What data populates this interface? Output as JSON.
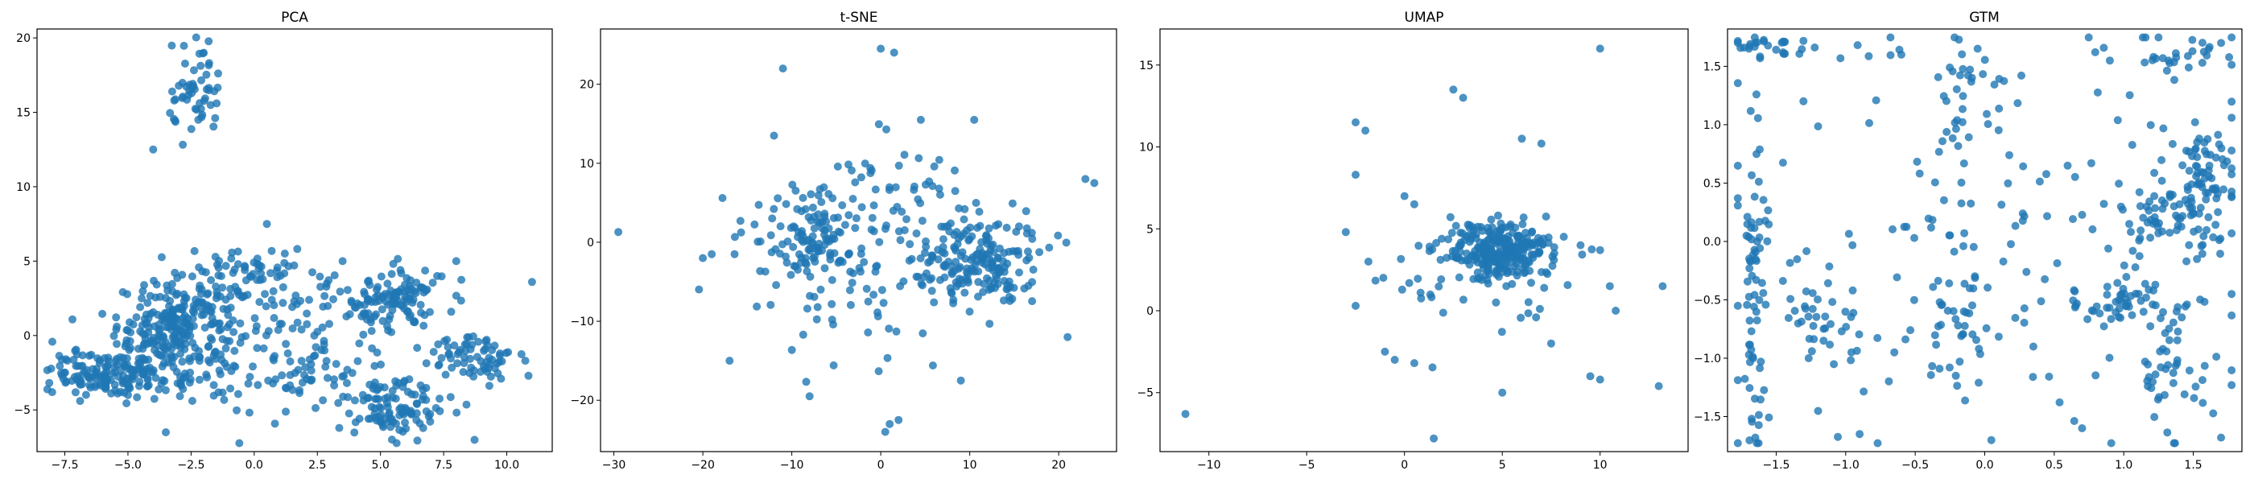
{
  "figure": {
    "background": "#ffffff"
  },
  "chart_data": [
    {
      "type": "scatter",
      "title": "PCA",
      "xlabel": "",
      "ylabel": "",
      "xlim": [
        -8.6,
        11.8
      ],
      "ylim": [
        -7.8,
        20.6
      ],
      "xticks": [
        -7.5,
        -5.0,
        -2.5,
        0.0,
        2.5,
        5.0,
        7.5,
        10.0
      ],
      "xtick_labels": [
        "−7.5",
        "−5.0",
        "−2.5",
        "0.0",
        "2.5",
        "5.0",
        "7.5",
        "10.0"
      ],
      "yticks": [
        -5,
        0,
        5,
        10,
        15,
        20
      ],
      "ytick_labels": [
        "−5",
        "0",
        "5",
        "10",
        "15",
        "20"
      ],
      "color": "#1f77b4",
      "grid": false,
      "clusters": [
        {
          "center": [
            -3.0,
            0.5
          ],
          "spread": [
            1.2,
            1.6
          ],
          "count": 260
        },
        {
          "center": [
            -5.5,
            -2.6
          ],
          "spread": [
            1.3,
            0.8
          ],
          "count": 170
        },
        {
          "center": [
            5.5,
            2.5
          ],
          "spread": [
            1.0,
            1.1
          ],
          "count": 110
        },
        {
          "center": [
            5.5,
            -4.5
          ],
          "spread": [
            1.1,
            1.2
          ],
          "count": 110
        },
        {
          "center": [
            8.8,
            -1.5
          ],
          "spread": [
            1.1,
            0.9
          ],
          "count": 70
        },
        {
          "center": [
            -2.3,
            16.0
          ],
          "spread": [
            0.55,
            1.6
          ],
          "count": 55
        },
        {
          "center": [
            -0.5,
            4.0
          ],
          "spread": [
            1.1,
            1.0
          ],
          "count": 60
        },
        {
          "center": [
            1.5,
            -3.0
          ],
          "spread": [
            1.6,
            1.5
          ],
          "count": 70
        },
        {
          "center": [
            2.5,
            1.5
          ],
          "spread": [
            2.0,
            1.8
          ],
          "count": 60
        }
      ],
      "points": [
        [
          11.0,
          3.6
        ],
        [
          -8.0,
          -3.8
        ],
        [
          -2.0,
          19.0
        ],
        [
          -4.0,
          12.5
        ],
        [
          0.5,
          7.5
        ],
        [
          3.5,
          5.0
        ],
        [
          8.0,
          5.0
        ],
        [
          -3.5,
          -6.5
        ]
      ]
    },
    {
      "type": "scatter",
      "title": "t-SNE",
      "xlabel": "",
      "ylabel": "",
      "xlim": [
        -31.5,
        26.5
      ],
      "ylim": [
        -26.5,
        27.0
      ],
      "xticks": [
        -30,
        -20,
        -10,
        0,
        10,
        20
      ],
      "xtick_labels": [
        "−30",
        "−20",
        "−10",
        "0",
        "10",
        "20"
      ],
      "yticks": [
        -20,
        -10,
        0,
        10,
        20
      ],
      "ytick_labels": [
        "−20",
        "−10",
        "0",
        "10",
        "20"
      ],
      "color": "#1f77b4",
      "grid": false,
      "clusters": [
        {
          "center": [
            11.0,
            -2.5
          ],
          "spread": [
            3.5,
            3.0
          ],
          "count": 180
        },
        {
          "center": [
            -8.0,
            1.0
          ],
          "spread": [
            3.8,
            3.0
          ],
          "count": 120
        },
        {
          "center": [
            1.0,
            0.0
          ],
          "spread": [
            7.0,
            6.0
          ],
          "count": 60
        },
        {
          "center": [
            -4.0,
            -8.0
          ],
          "spread": [
            5.0,
            4.0
          ],
          "count": 30
        },
        {
          "center": [
            2.0,
            8.0
          ],
          "spread": [
            3.0,
            2.0
          ],
          "count": 25
        }
      ],
      "points": [
        [
          -29.5,
          1.3
        ],
        [
          0.0,
          24.5
        ],
        [
          1.5,
          24.0
        ],
        [
          -11.0,
          22.0
        ],
        [
          23.0,
          8.0
        ],
        [
          24.0,
          7.5
        ],
        [
          1.0,
          -23.0
        ],
        [
          2.0,
          -22.5
        ],
        [
          0.5,
          -24.0
        ],
        [
          -8.0,
          -19.5
        ],
        [
          9.0,
          -17.5
        ],
        [
          -17.0,
          -15.0
        ],
        [
          21.0,
          -12.0
        ],
        [
          -20.0,
          -2.0
        ],
        [
          -19.0,
          -1.5
        ],
        [
          10.5,
          15.5
        ],
        [
          4.5,
          15.5
        ],
        [
          -12.0,
          13.5
        ]
      ]
    },
    {
      "type": "scatter",
      "title": "UMAP",
      "xlabel": "",
      "ylabel": "",
      "xlim": [
        -12.5,
        14.5
      ],
      "ylim": [
        -8.6,
        17.2
      ],
      "xticks": [
        -10,
        -5,
        0,
        5,
        10
      ],
      "xtick_labels": [
        "−10",
        "−5",
        "0",
        "5",
        "10"
      ],
      "yticks": [
        -5,
        0,
        5,
        10,
        15
      ],
      "ytick_labels": [
        "−5",
        "0",
        "5",
        "10",
        "15"
      ],
      "color": "#1f77b4",
      "grid": false,
      "clusters": [
        {
          "center": [
            5.0,
            3.7
          ],
          "spread": [
            1.2,
            0.8
          ],
          "count": 260
        },
        {
          "center": [
            4.0,
            2.5
          ],
          "spread": [
            2.5,
            1.8
          ],
          "count": 70
        }
      ],
      "points": [
        [
          -11.2,
          -6.3
        ],
        [
          10.0,
          16.0
        ],
        [
          2.5,
          13.5
        ],
        [
          3.0,
          13.0
        ],
        [
          -2.5,
          11.5
        ],
        [
          -2.0,
          11.0
        ],
        [
          -2.5,
          8.3
        ],
        [
          -3.0,
          4.8
        ],
        [
          0.5,
          6.5
        ],
        [
          0.0,
          7.0
        ],
        [
          -1.0,
          -2.5
        ],
        [
          -0.5,
          -3.0
        ],
        [
          0.5,
          -3.2
        ],
        [
          1.5,
          -7.8
        ],
        [
          9.5,
          -4.0
        ],
        [
          10.0,
          -4.2
        ],
        [
          13.0,
          -4.6
        ],
        [
          13.2,
          1.5
        ],
        [
          10.5,
          1.5
        ],
        [
          10.8,
          0.0
        ],
        [
          6.0,
          10.5
        ],
        [
          7.0,
          10.2
        ],
        [
          9.0,
          4.0
        ],
        [
          10.0,
          3.7
        ],
        [
          5.0,
          -5.0
        ],
        [
          -2.5,
          0.3
        ],
        [
          7.5,
          -2.0
        ]
      ]
    },
    {
      "type": "scatter",
      "title": "GTM",
      "xlabel": "",
      "ylabel": "",
      "xlim": [
        -1.85,
        1.85
      ],
      "ylim": [
        -1.8,
        1.82
      ],
      "xticks": [
        -1.5,
        -1.0,
        -0.5,
        0.0,
        0.5,
        1.0,
        1.5
      ],
      "xtick_labels": [
        "−1.5",
        "−1.0",
        "−0.5",
        "0.0",
        "0.5",
        "1.0",
        "1.5"
      ],
      "yticks": [
        -1.5,
        -1.0,
        -0.5,
        0.0,
        0.5,
        1.0,
        1.5
      ],
      "ytick_labels": [
        "−1.5",
        "−1.0",
        "−0.5",
        "0.0",
        "0.5",
        "1.0",
        "1.5"
      ],
      "color": "#1f77b4",
      "grid": false,
      "clusters": [
        {
          "center": [
            1.55,
            0.4
          ],
          "spread": [
            0.12,
            0.3
          ],
          "count": 90
        },
        {
          "center": [
            1.2,
            0.25
          ],
          "spread": [
            0.12,
            0.2
          ],
          "count": 40
        },
        {
          "center": [
            1.05,
            -0.55
          ],
          "spread": [
            0.2,
            0.08
          ],
          "count": 50
        },
        {
          "center": [
            -1.65,
            -0.4
          ],
          "spread": [
            0.04,
            0.9
          ],
          "count": 70
        },
        {
          "center": [
            -0.2,
            -0.6
          ],
          "spread": [
            0.1,
            0.35
          ],
          "count": 40
        },
        {
          "center": [
            -1.15,
            -0.7
          ],
          "spread": [
            0.15,
            0.3
          ],
          "count": 40
        },
        {
          "center": [
            1.35,
            -1.2
          ],
          "spread": [
            0.2,
            0.3
          ],
          "count": 40
        },
        {
          "center": [
            -0.1,
            1.25
          ],
          "spread": [
            0.1,
            0.2
          ],
          "count": 30
        },
        {
          "center": [
            1.4,
            1.6
          ],
          "spread": [
            0.25,
            0.08
          ],
          "count": 25
        },
        {
          "center": [
            -1.5,
            1.65
          ],
          "spread": [
            0.2,
            0.05
          ],
          "count": 25
        },
        {
          "center": [
            0.0,
            0.0
          ],
          "spread": [
            1.0,
            1.0
          ],
          "count": 140
        }
      ],
      "points": [
        [
          -1.65,
          1.7
        ],
        [
          1.7,
          1.7
        ],
        [
          -1.65,
          -1.68
        ],
        [
          1.7,
          -1.68
        ],
        [
          -0.9,
          -1.65
        ],
        [
          0.7,
          -1.6
        ],
        [
          -0.65,
          -0.95
        ],
        [
          0.35,
          -0.9
        ],
        [
          -0.6,
          1.6
        ],
        [
          0.9,
          1.55
        ]
      ]
    }
  ]
}
